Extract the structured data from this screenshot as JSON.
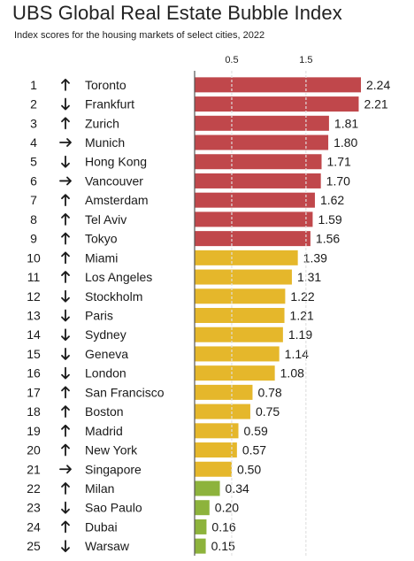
{
  "chart_data": {
    "type": "bar",
    "orientation": "horizontal",
    "title": "UBS Global Real Estate Bubble Index",
    "subtitle": "Index scores for the housing markets of select cities, 2022",
    "x_ticks": [
      "0.5",
      "1.5"
    ],
    "x_tick_values": [
      0.5,
      1.5
    ],
    "xlim": [
      0,
      2.24
    ],
    "grid": "vertical dashed lines at 0.5 and 1.5",
    "colors": {
      "high": "#c0474b",
      "mid": "#e5b72b",
      "low": "#8db33c",
      "arrow": "#1a1a1a"
    },
    "rows": [
      {
        "rank": "1",
        "trend": "up",
        "city": "Toronto",
        "value": 2.24,
        "label": "2.24",
        "color": "high"
      },
      {
        "rank": "2",
        "trend": "down",
        "city": "Frankfurt",
        "value": 2.21,
        "label": "2.21",
        "color": "high"
      },
      {
        "rank": "3",
        "trend": "up",
        "city": "Zurich",
        "value": 1.81,
        "label": "1.81",
        "color": "high"
      },
      {
        "rank": "4",
        "trend": "right",
        "city": "Munich",
        "value": 1.8,
        "label": "1.80",
        "color": "high"
      },
      {
        "rank": "5",
        "trend": "down",
        "city": "Hong Kong",
        "value": 1.71,
        "label": "1.71",
        "color": "high"
      },
      {
        "rank": "6",
        "trend": "right",
        "city": "Vancouver",
        "value": 1.7,
        "label": "1.70",
        "color": "high"
      },
      {
        "rank": "7",
        "trend": "up",
        "city": "Amsterdam",
        "value": 1.62,
        "label": "1.62",
        "color": "high"
      },
      {
        "rank": "8",
        "trend": "up",
        "city": "Tel Aviv",
        "value": 1.59,
        "label": "1.59",
        "color": "high"
      },
      {
        "rank": "9",
        "trend": "up",
        "city": "Tokyo",
        "value": 1.56,
        "label": "1.56",
        "color": "high"
      },
      {
        "rank": "10",
        "trend": "up",
        "city": "Miami",
        "value": 1.39,
        "label": "1.39",
        "color": "mid"
      },
      {
        "rank": "11",
        "trend": "up",
        "city": "Los Angeles",
        "value": 1.31,
        "label": "1.31",
        "color": "mid"
      },
      {
        "rank": "12",
        "trend": "down",
        "city": "Stockholm",
        "value": 1.22,
        "label": "1.22",
        "color": "mid"
      },
      {
        "rank": "13",
        "trend": "down",
        "city": "Paris",
        "value": 1.21,
        "label": "1.21",
        "color": "mid"
      },
      {
        "rank": "14",
        "trend": "down",
        "city": "Sydney",
        "value": 1.19,
        "label": "1.19",
        "color": "mid"
      },
      {
        "rank": "15",
        "trend": "down",
        "city": "Geneva",
        "value": 1.14,
        "label": "1.14",
        "color": "mid"
      },
      {
        "rank": "16",
        "trend": "down",
        "city": "London",
        "value": 1.08,
        "label": "1.08",
        "color": "mid"
      },
      {
        "rank": "17",
        "trend": "up",
        "city": "San Francisco",
        "value": 0.78,
        "label": "0.78",
        "color": "mid"
      },
      {
        "rank": "18",
        "trend": "up",
        "city": "Boston",
        "value": 0.75,
        "label": "0.75",
        "color": "mid"
      },
      {
        "rank": "19",
        "trend": "up",
        "city": "Madrid",
        "value": 0.59,
        "label": "0.59",
        "color": "mid"
      },
      {
        "rank": "20",
        "trend": "up",
        "city": "New York",
        "value": 0.57,
        "label": "0.57",
        "color": "mid"
      },
      {
        "rank": "21",
        "trend": "right",
        "city": "Singapore",
        "value": 0.5,
        "label": "0.50",
        "color": "mid"
      },
      {
        "rank": "22",
        "trend": "up",
        "city": "Milan",
        "value": 0.34,
        "label": "0.34",
        "color": "low"
      },
      {
        "rank": "23",
        "trend": "down",
        "city": "Sao Paulo",
        "value": 0.2,
        "label": "0.20",
        "color": "low"
      },
      {
        "rank": "24",
        "trend": "up",
        "city": "Dubai",
        "value": 0.16,
        "label": "0.16",
        "color": "low"
      },
      {
        "rank": "25",
        "trend": "down",
        "city": "Warsaw",
        "value": 0.15,
        "label": "0.15",
        "color": "low"
      }
    ]
  }
}
